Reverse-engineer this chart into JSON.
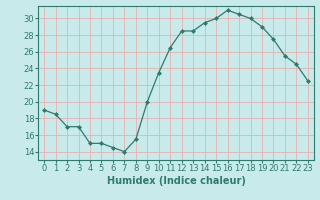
{
  "x": [
    0,
    1,
    2,
    3,
    4,
    5,
    6,
    7,
    8,
    9,
    10,
    11,
    12,
    13,
    14,
    15,
    16,
    17,
    18,
    19,
    20,
    21,
    22,
    23
  ],
  "y": [
    19,
    18.5,
    17,
    17,
    15,
    15,
    14.5,
    14,
    15.5,
    20,
    23.5,
    26.5,
    28.5,
    28.5,
    29.5,
    30,
    31,
    30.5,
    30,
    29,
    27.5,
    25.5,
    24.5,
    22.5
  ],
  "line_color": "#2e7b6e",
  "marker_color": "#2e7b6e",
  "bg_color": "#c8eaea",
  "grid_color": "#e8b0b0",
  "axis_color": "#2e7b6e",
  "xlabel": "Humidex (Indice chaleur)",
  "xlim": [
    -0.5,
    23.5
  ],
  "ylim": [
    13,
    31.5
  ],
  "yticks": [
    14,
    16,
    18,
    20,
    22,
    24,
    26,
    28,
    30
  ],
  "xticks": [
    0,
    1,
    2,
    3,
    4,
    5,
    6,
    7,
    8,
    9,
    10,
    11,
    12,
    13,
    14,
    15,
    16,
    17,
    18,
    19,
    20,
    21,
    22,
    23
  ],
  "xtick_labels": [
    "0",
    "1",
    "2",
    "3",
    "4",
    "5",
    "6",
    "7",
    "8",
    "9",
    "10",
    "11",
    "12",
    "13",
    "14",
    "15",
    "16",
    "17",
    "18",
    "19",
    "20",
    "21",
    "22",
    "23"
  ],
  "label_fontsize": 7,
  "tick_fontsize": 6
}
